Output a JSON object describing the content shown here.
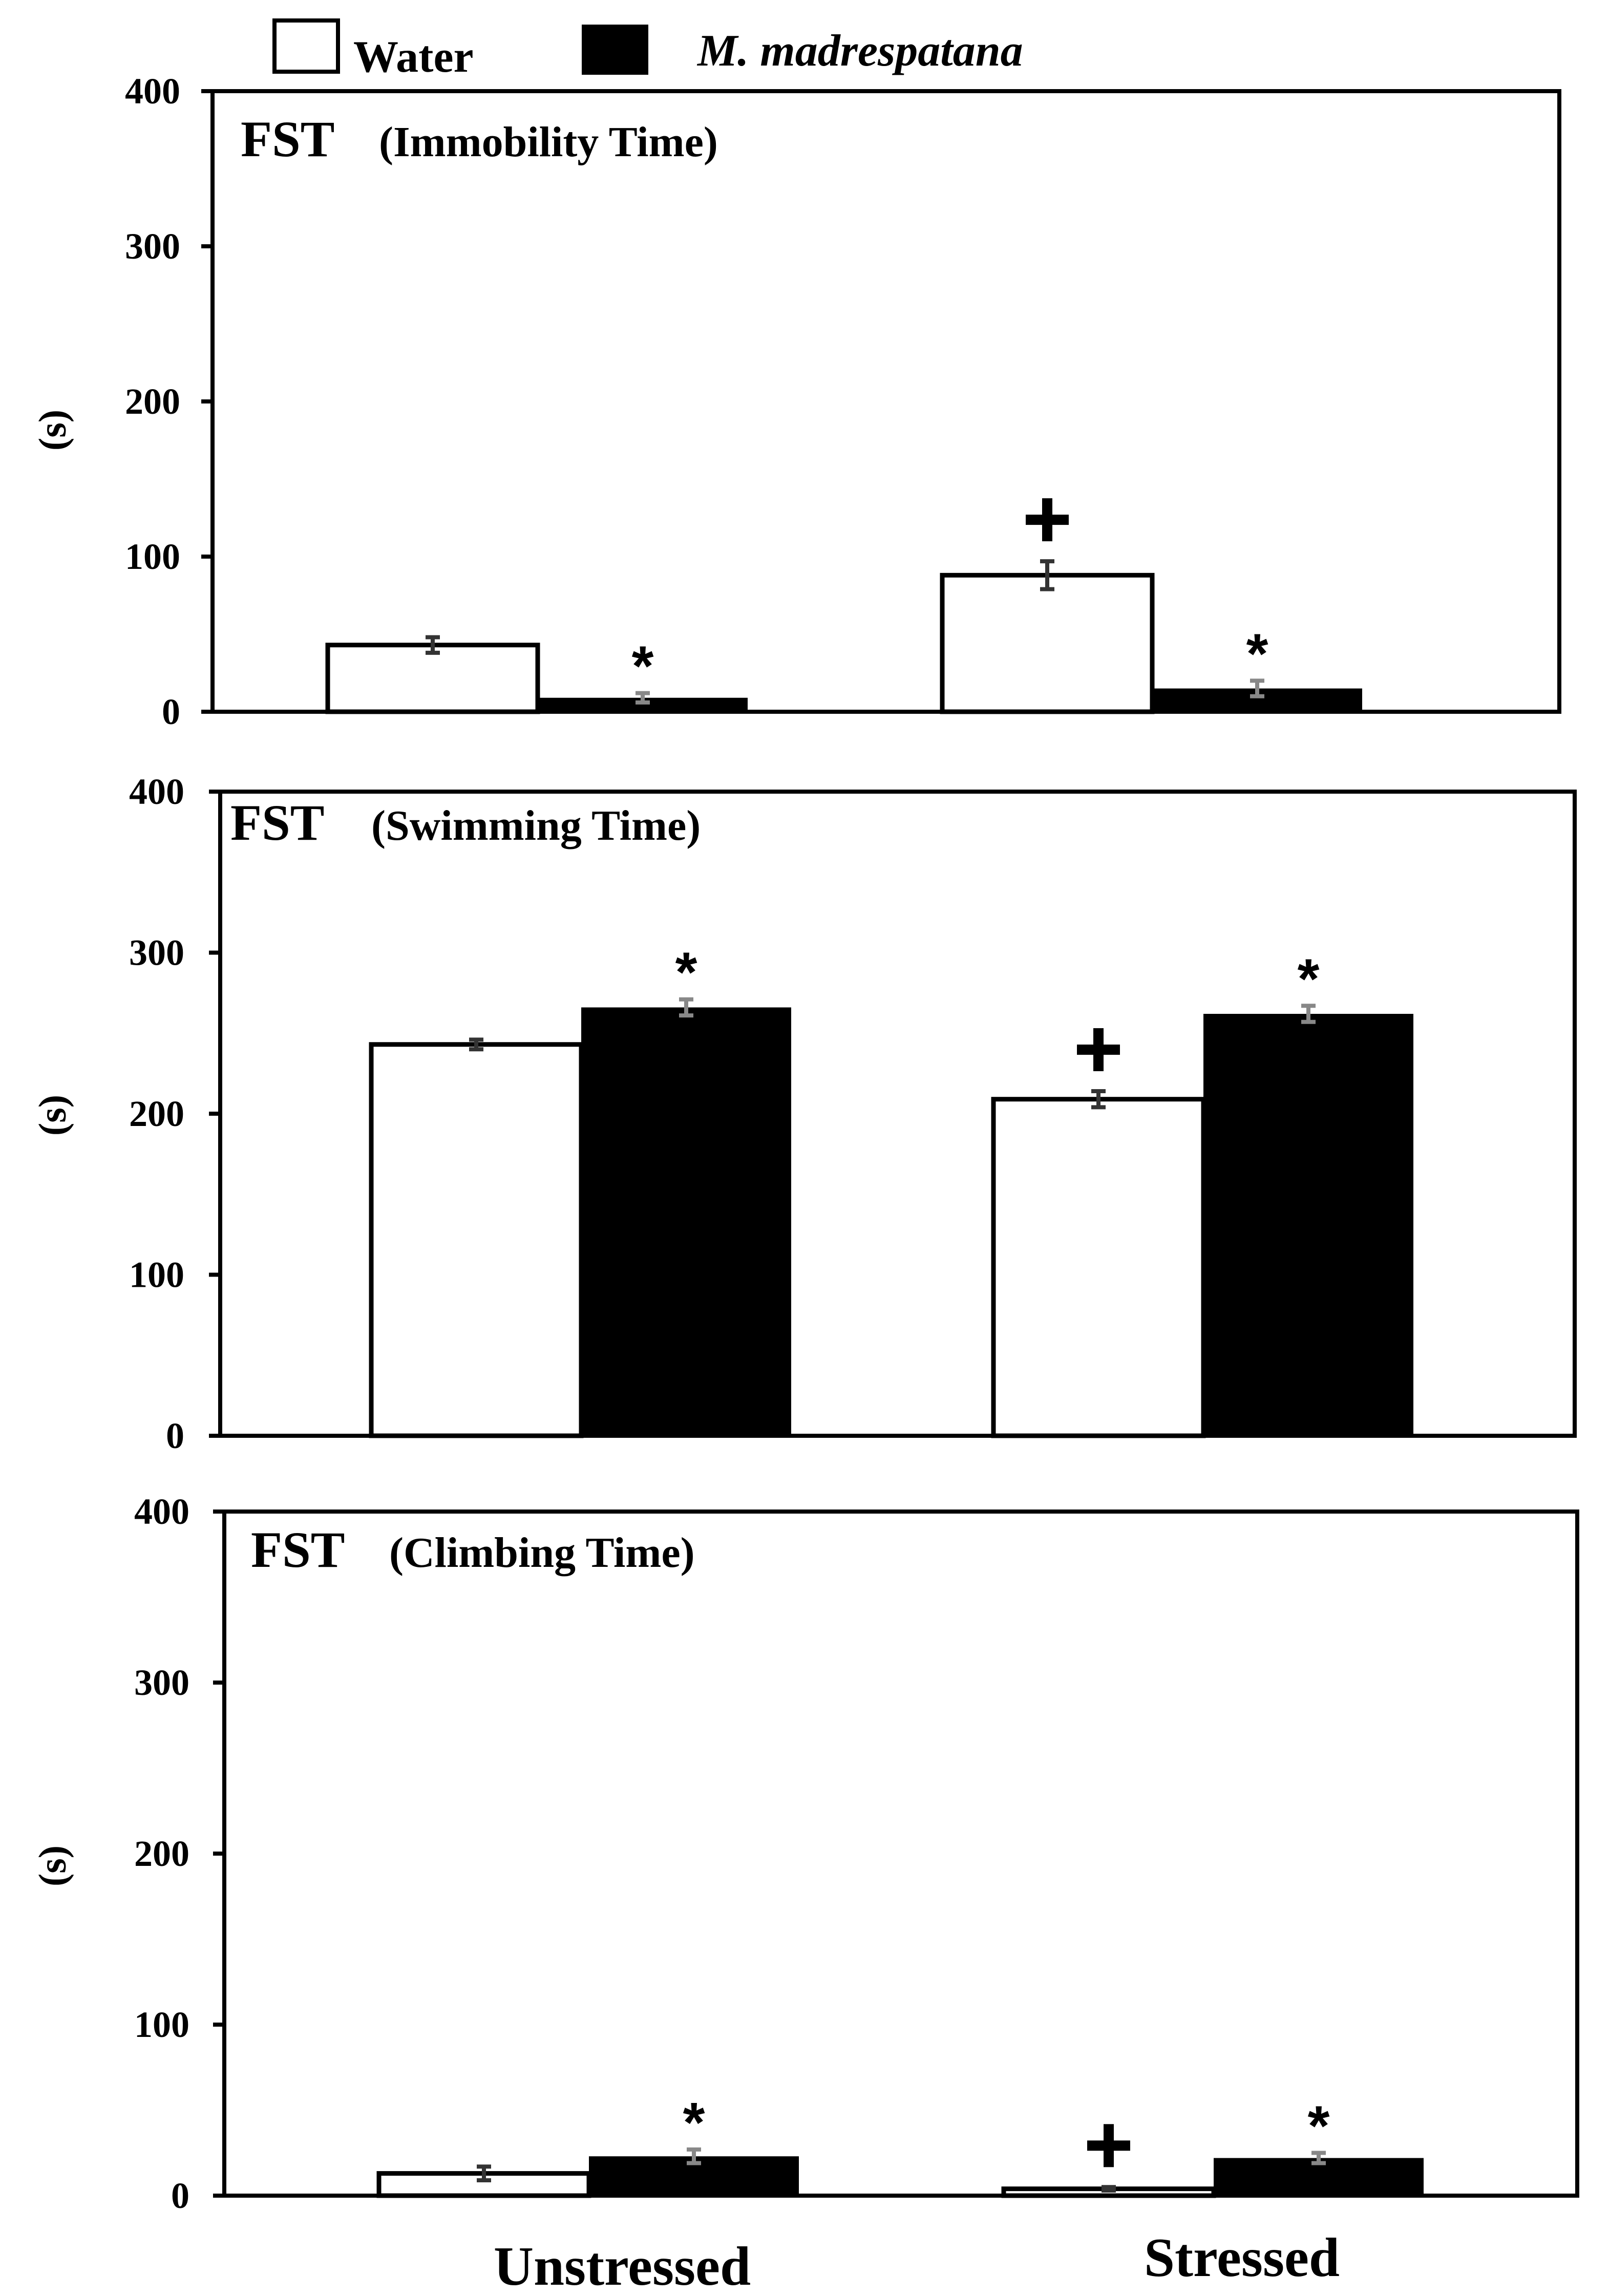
{
  "legend": {
    "items": [
      {
        "label": "Water",
        "fill": "#ffffff",
        "italic": false
      },
      {
        "label": "M. madrespatana",
        "fill": "#000000",
        "italic": true
      }
    ]
  },
  "categories": [
    "Unstressed",
    "Stressed"
  ],
  "chart_data": [
    {
      "type": "bar",
      "title_main": "FST",
      "title_sub": "(Immobility Time)",
      "ylabel": "(s)",
      "ylim": [
        0,
        400
      ],
      "yticks": [
        "0",
        "100",
        "200",
        "300",
        "400"
      ],
      "categories": [
        "Unstressed",
        "Stressed"
      ],
      "series": [
        {
          "name": "Water",
          "values": [
            43,
            88
          ],
          "errors": [
            5,
            9
          ],
          "err_color": "#333333",
          "marks": [
            "",
            "+"
          ]
        },
        {
          "name": "M. madrespatana",
          "values": [
            9,
            15
          ],
          "errors": [
            3,
            5
          ],
          "err_color": "#888888",
          "marks": [
            "*",
            "*"
          ]
        }
      ]
    },
    {
      "type": "bar",
      "title_main": "FST",
      "title_sub": "(Swimming Time)",
      "ylabel": "(s)",
      "ylim": [
        0,
        400
      ],
      "yticks": [
        "0",
        "100",
        "200",
        "300",
        "400"
      ],
      "categories": [
        "Unstressed",
        "Stressed"
      ],
      "series": [
        {
          "name": "Water",
          "values": [
            243,
            209
          ],
          "errors": [
            3,
            5
          ],
          "err_color": "#333333",
          "marks": [
            "",
            "+"
          ]
        },
        {
          "name": "M. madrespatana",
          "values": [
            266,
            262
          ],
          "errors": [
            5,
            5
          ],
          "err_color": "#888888",
          "marks": [
            "*",
            "*"
          ]
        }
      ]
    },
    {
      "type": "bar",
      "title_main": "FST",
      "title_sub": "(Climbing Time)",
      "ylabel": "(s)",
      "ylim": [
        0,
        400
      ],
      "yticks": [
        "0",
        "100",
        "200",
        "300",
        "400"
      ],
      "categories": [
        "Unstressed",
        "Stressed"
      ],
      "series": [
        {
          "name": "Water",
          "values": [
            13,
            4
          ],
          "errors": [
            4,
            1
          ],
          "err_color": "#333333",
          "marks": [
            "",
            "+"
          ]
        },
        {
          "name": "M. madrespatana",
          "values": [
            23,
            22
          ],
          "errors": [
            4,
            3
          ],
          "err_color": "#888888",
          "marks": [
            "*",
            "*"
          ]
        }
      ]
    }
  ]
}
